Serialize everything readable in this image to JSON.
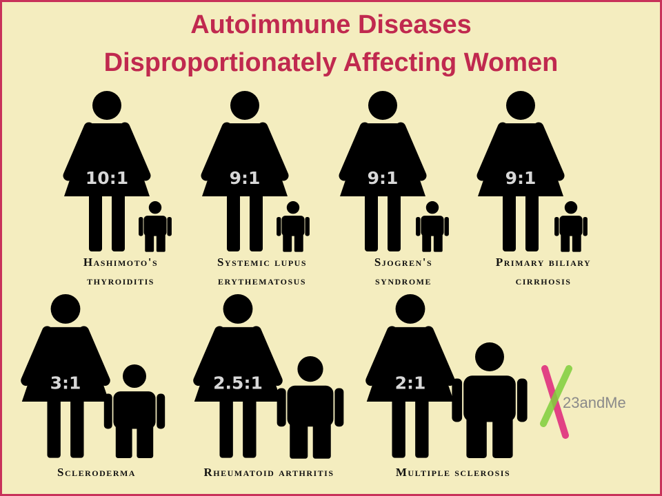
{
  "title": [
    "Autoimmune Diseases",
    "Disproportionately Affecting Women"
  ],
  "items": [
    {
      "ratio": "10:1",
      "name": [
        "Hashimoto's",
        "thyroiditis"
      ]
    },
    {
      "ratio": "9:1",
      "name": [
        "Systemic lupus",
        "erythematosus"
      ]
    },
    {
      "ratio": "9:1",
      "name": [
        "Sjogren's",
        "syndrome"
      ]
    },
    {
      "ratio": "9:1",
      "name": [
        "Primary biliary",
        "cirrhosis"
      ]
    },
    {
      "ratio": "3:1",
      "name": [
        "Scleroderma"
      ]
    },
    {
      "ratio": "2.5:1",
      "name": [
        "Rheumatoid arthritis"
      ]
    },
    {
      "ratio": "2:1",
      "name": [
        "Multiple sclerosis"
      ]
    }
  ],
  "logo": "23andMe"
}
